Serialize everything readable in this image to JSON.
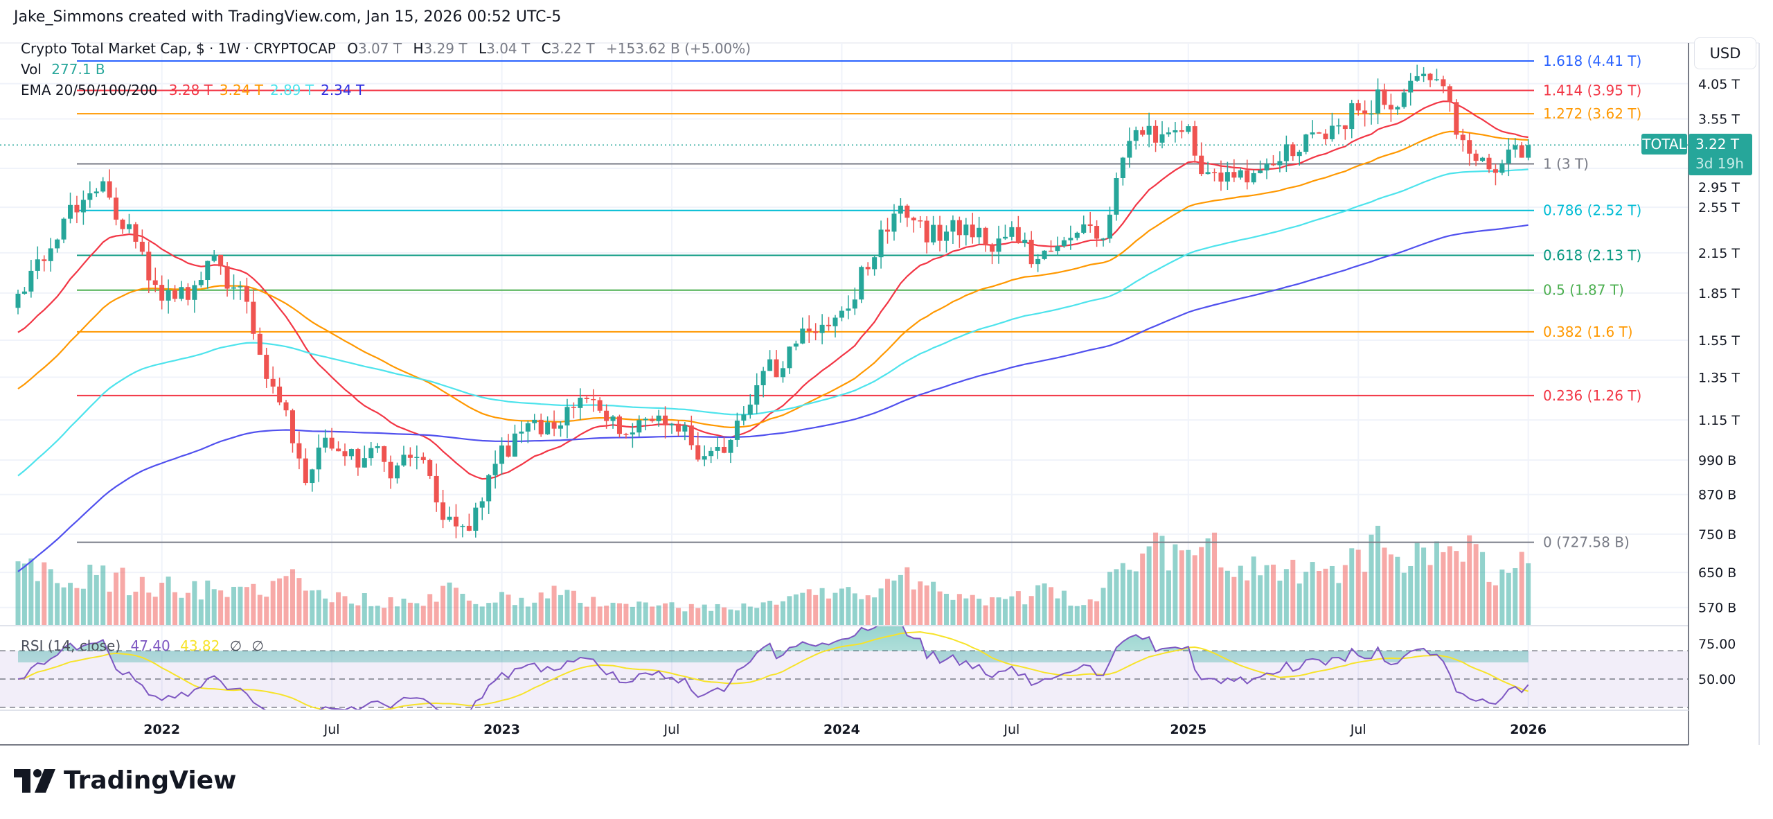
{
  "header": {
    "attribution": "Jake_Simmons created with TradingView.com, Jan 15, 2026 00:52 UTC-5"
  },
  "legend": {
    "symbol": "Crypto Total Market Cap, $ · 1W · CRYPTOCAP",
    "o_label": "O",
    "o": "3.07 T",
    "h_label": "H",
    "h": "3.29 T",
    "l_label": "L",
    "l": "3.04 T",
    "c_label": "C",
    "c": "3.22 T",
    "change": "+153.62 B (+5.00%)",
    "vol_label": "Vol",
    "vol": "277.1 B",
    "ema_label": "EMA 20/50/100/200",
    "ema_values": [
      {
        "text": "3.28 T",
        "color": "#f23645"
      },
      {
        "text": "3.24 T",
        "color": "#ff9800"
      },
      {
        "text": "2.89 T",
        "color": "#4de3ec"
      },
      {
        "text": "2.34 T",
        "color": "#2f2fe0"
      }
    ]
  },
  "price_axis": {
    "currency": "USD",
    "labels": [
      {
        "text": "4.05 T",
        "value": 4.05
      },
      {
        "text": "3.55 T",
        "value": 3.55
      },
      {
        "text": "2.95 T",
        "value": 2.95
      },
      {
        "text": "2.55 T",
        "value": 2.55
      },
      {
        "text": "2.15 T",
        "value": 2.15
      },
      {
        "text": "1.85 T",
        "value": 1.85
      },
      {
        "text": "1.55 T",
        "value": 1.55
      },
      {
        "text": "1.35 T",
        "value": 1.35
      },
      {
        "text": "1.15 T",
        "value": 1.15
      },
      {
        "text": "990 B",
        "value": 0.99
      },
      {
        "text": "870 B",
        "value": 0.87
      },
      {
        "text": "750 B",
        "value": 0.75
      },
      {
        "text": "650 B",
        "value": 0.65
      },
      {
        "text": "570 B",
        "value": 0.57
      }
    ]
  },
  "current": {
    "symbol": "TOTAL",
    "price": "3.22 T",
    "value": 3.22,
    "countdown": "3d 19h"
  },
  "fib_levels": [
    {
      "label": "1.618 (4.41 T)",
      "value": 4.41,
      "color": "#2962ff"
    },
    {
      "label": "1.414 (3.95 T)",
      "value": 3.95,
      "color": "#f23645"
    },
    {
      "label": "1.272 (3.62 T)",
      "value": 3.62,
      "color": "#ff9800"
    },
    {
      "label": "1 (3 T)",
      "value": 3.0,
      "color": "#787b86"
    },
    {
      "label": "0.786 (2.52 T)",
      "value": 2.52,
      "color": "#00bcd4"
    },
    {
      "label": "0.618 (2.13 T)",
      "value": 2.13,
      "color": "#089981"
    },
    {
      "label": "0.5 (1.87 T)",
      "value": 1.87,
      "color": "#4caf50"
    },
    {
      "label": "0.382 (1.6 T)",
      "value": 1.6,
      "color": "#ff9800"
    },
    {
      "label": "0.236 (1.26 T)",
      "value": 1.26,
      "color": "#f23645"
    },
    {
      "label": "0 (727.58 B)",
      "value": 0.72758,
      "color": "#787b86"
    }
  ],
  "rsi": {
    "label": "RSI (14, close)",
    "value": "47.40",
    "ma": "43.82",
    "extra": [
      "∅",
      "∅"
    ],
    "value_color": "#7e57c2",
    "ma_color": "#f7e32a",
    "axis": [
      {
        "text": "75.00",
        "value": 75
      },
      {
        "text": "50.00",
        "value": 50
      }
    ]
  },
  "time_axis": [
    {
      "label": "2022",
      "date": "2022-01-03",
      "bold": true
    },
    {
      "label": "Jul",
      "date": "2022-07-04",
      "bold": false
    },
    {
      "label": "2023",
      "date": "2023-01-02",
      "bold": true
    },
    {
      "label": "Jul",
      "date": "2023-07-03",
      "bold": false
    },
    {
      "label": "2024",
      "date": "2024-01-01",
      "bold": true
    },
    {
      "label": "Jul",
      "date": "2024-07-01",
      "bold": false
    },
    {
      "label": "2025",
      "date": "2025-01-06",
      "bold": true
    },
    {
      "label": "Jul",
      "date": "2025-07-07",
      "bold": false
    },
    {
      "label": "2026",
      "date": "2026-01-05",
      "bold": true
    }
  ],
  "logo": "TradingView",
  "chart_data": {
    "type": "candlestick",
    "interval": "1W",
    "y_scale": "log",
    "unit": "T USD",
    "colors": {
      "up": "#26a69a",
      "down": "#ef5350",
      "ema20": "#f23645",
      "ema50": "#ff9800",
      "ema100": "#4de3ec",
      "ema200": "#5050ee",
      "rsi": "#7e57c2",
      "rsi_ma": "#f7e32a"
    },
    "monthly_close_estimates": {
      "months": [
        "2021-08",
        "2021-09",
        "2021-10",
        "2021-11",
        "2021-12",
        "2022-01",
        "2022-02",
        "2022-03",
        "2022-04",
        "2022-05",
        "2022-06",
        "2022-07",
        "2022-08",
        "2022-09",
        "2022-10",
        "2022-11",
        "2022-12",
        "2023-01",
        "2023-02",
        "2023-03",
        "2023-04",
        "2023-05",
        "2023-06",
        "2023-07",
        "2023-08",
        "2023-09",
        "2023-10",
        "2023-11",
        "2023-12",
        "2024-01",
        "2024-02",
        "2024-03",
        "2024-04",
        "2024-05",
        "2024-06",
        "2024-07",
        "2024-08",
        "2024-09",
        "2024-10",
        "2024-11",
        "2024-12",
        "2025-01",
        "2025-02",
        "2025-03",
        "2025-04",
        "2025-05",
        "2025-06",
        "2025-07",
        "2025-08",
        "2025-09",
        "2025-10",
        "2025-11",
        "2025-12",
        "2026-01"
      ],
      "close": [
        1.75,
        2.05,
        2.6,
        2.75,
        2.25,
        1.75,
        1.78,
        2.05,
        1.8,
        1.3,
        0.92,
        1.05,
        1.0,
        0.95,
        1.0,
        0.83,
        0.8,
        1.05,
        1.07,
        1.2,
        1.18,
        1.13,
        1.16,
        1.15,
        1.05,
        1.05,
        1.25,
        1.45,
        1.65,
        1.65,
        2.2,
        2.55,
        2.3,
        2.4,
        2.3,
        2.3,
        2.05,
        2.2,
        2.3,
        3.2,
        3.35,
        3.4,
        2.85,
        2.75,
        2.9,
        3.25,
        3.3,
        3.85,
        3.9,
        3.9,
        3.8,
        3.05,
        2.95,
        3.22
      ],
      "volume_b": [
        240,
        230,
        230,
        220,
        190,
        180,
        170,
        150,
        140,
        200,
        200,
        140,
        120,
        110,
        90,
        160,
        90,
        120,
        120,
        150,
        110,
        90,
        90,
        80,
        80,
        70,
        90,
        110,
        130,
        150,
        160,
        230,
        170,
        130,
        110,
        120,
        150,
        110,
        120,
        330,
        380,
        300,
        320,
        250,
        220,
        240,
        200,
        330,
        370,
        290,
        350,
        330,
        230,
        277.1
      ]
    },
    "last_candle": {
      "open": 3.07,
      "high": 3.29,
      "low": 3.04,
      "close": 3.22,
      "volume_b": 277.1
    },
    "indicators": [
      "EMA 20/50/100/200",
      "RSI (14, close)"
    ],
    "fib_retracement": true
  }
}
